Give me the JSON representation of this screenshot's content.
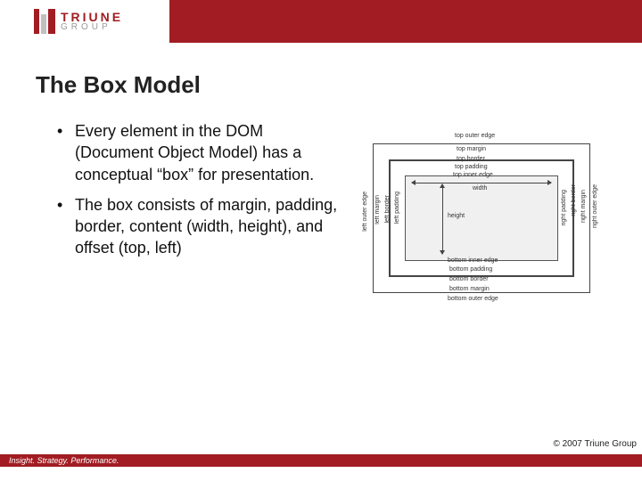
{
  "brand": {
    "name_top": "TRIUNE",
    "name_bottom": "GROUP",
    "accent_color": "#a11d23"
  },
  "slide": {
    "title": "The Box Model",
    "bullets": [
      "Every element in the DOM (Document Object Model) has a conceptual “box” for presentation.",
      "The box consists of margin, padding, border, content (width, height), and offset (top, left)"
    ]
  },
  "diagram": {
    "type": "box-model",
    "inner_fill": "#f0f0f0",
    "border_color": "#444444",
    "labels": {
      "top_outer": "top outer edge",
      "top_margin": "top margin",
      "top_border": "top border",
      "top_padding": "top padding",
      "top_inner": "top inner edge",
      "bottom_inner": "bottom inner edge",
      "bottom_padding": "bottom padding",
      "bottom_border": "bottom border",
      "bottom_margin": "bottom margin",
      "bottom_outer": "bottom outer edge",
      "left_outer": "left outer edge",
      "left_margin": "left margin",
      "left_border": "left border",
      "left_padding": "left padding",
      "right_padding": "right padding",
      "right_border": "right border",
      "right_margin": "right margin",
      "right_outer": "right outer edge",
      "width": "width",
      "height": "height"
    }
  },
  "footer": {
    "copyright": "© 2007 Triune Group",
    "tagline": "Insight. Strategy. Performance."
  }
}
